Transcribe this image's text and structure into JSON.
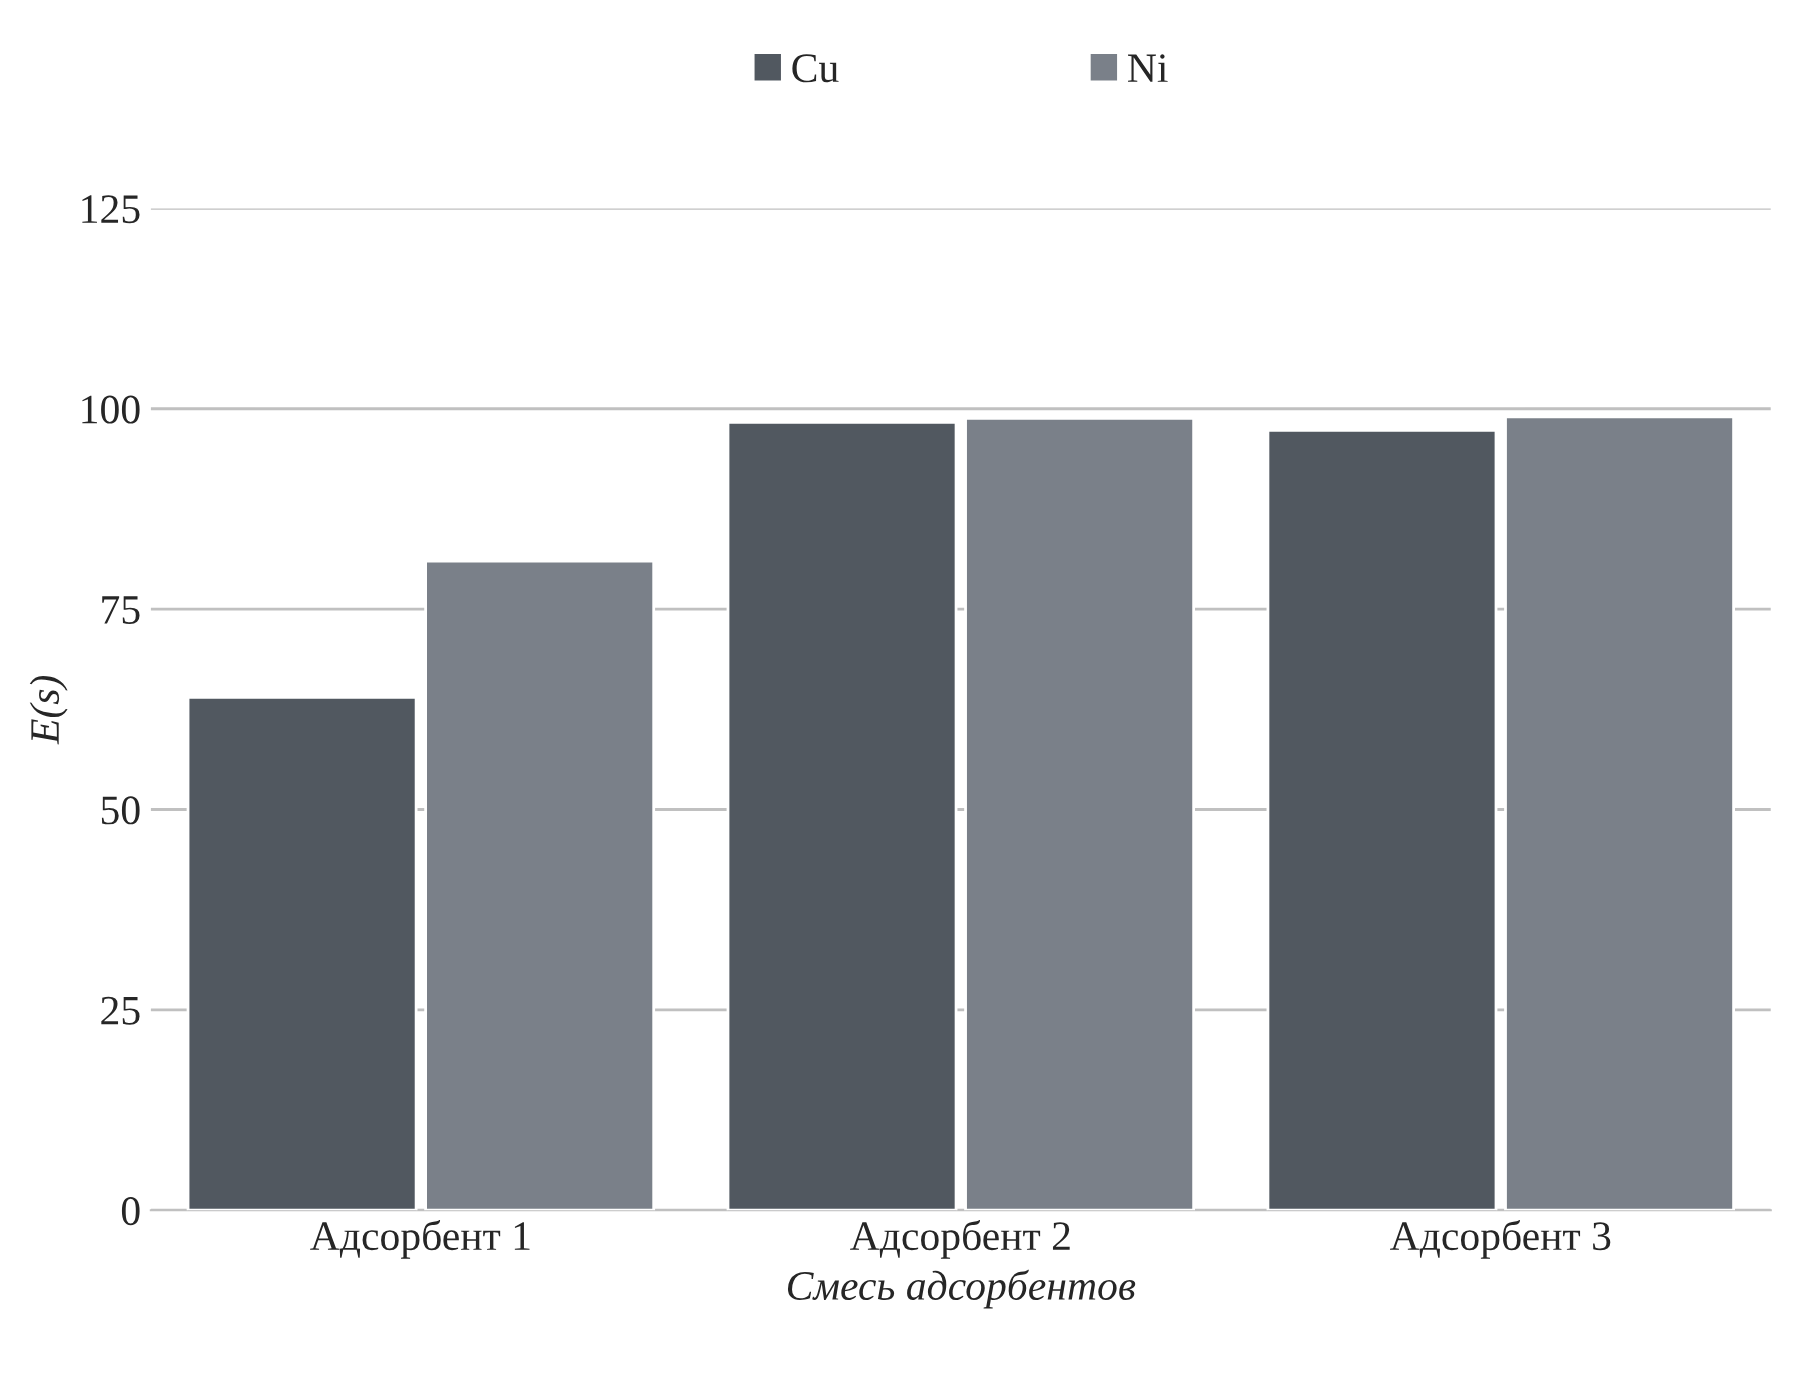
{
  "chart_data": {
    "type": "bar",
    "xlabel": "Смесь адсорбентов",
    "ylabel": "E(s)",
    "categories": [
      "Адсорбент 1",
      "Адсорбент 2",
      "Адсорбент 3"
    ],
    "series": [
      {
        "name": "Cu",
        "color": "#515860",
        "values": [
          64,
          98.3,
          97.3
        ]
      },
      {
        "name": "Ni",
        "color": "#7a8089",
        "values": [
          81,
          98.8,
          99
        ]
      }
    ],
    "ylim": [
      0,
      125
    ],
    "yticks": [
      0,
      25,
      50,
      75,
      100,
      125
    ],
    "grid": "y",
    "legend": "top"
  }
}
